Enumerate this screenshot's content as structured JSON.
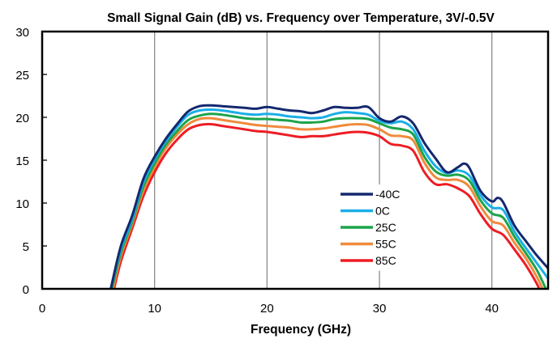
{
  "chart_data": {
    "type": "line",
    "title": "Small Signal Gain (dB) vs. Frequency over Temperature, 3V/-0.5V",
    "xlabel": "Frequency (GHz)",
    "ylabel": "",
    "xlim": [
      0,
      45
    ],
    "ylim": [
      0,
      30
    ],
    "xticks": [
      0,
      10,
      20,
      30,
      40
    ],
    "yticks": [
      0,
      5,
      10,
      15,
      20,
      25,
      30
    ],
    "grid": "vertical major gridlines",
    "legend_position": "center-right",
    "series": [
      {
        "name": "-40C",
        "color": "#14286e",
        "x": [
          6.1,
          7,
          8,
          9,
          10,
          11,
          12,
          13,
          14,
          15,
          16,
          17,
          18,
          19,
          20,
          21,
          22,
          23,
          24,
          25,
          26,
          27,
          28,
          29,
          30,
          31,
          32,
          33,
          34,
          35,
          36,
          37,
          37.5,
          38,
          39,
          40,
          40.5,
          41,
          42,
          43,
          44,
          45
        ],
        "y": [
          0,
          5,
          8.5,
          12.8,
          15.4,
          17.5,
          19.2,
          20.7,
          21.3,
          21.4,
          21.3,
          21.2,
          21.1,
          21,
          21.2,
          21,
          20.8,
          20.7,
          20.5,
          20.8,
          21.2,
          21.1,
          21.1,
          21.2,
          19.9,
          19.5,
          20.1,
          19.3,
          17,
          15.2,
          13.6,
          14.2,
          14.6,
          14.1,
          11.4,
          10.2,
          10.6,
          10.1,
          7.4,
          5.6,
          3.9,
          2.4
        ]
      },
      {
        "name": "0C",
        "color": "#1aaee8",
        "x": [
          6.1,
          7,
          8,
          9,
          10,
          11,
          12,
          13,
          14,
          15,
          16,
          17,
          18,
          19,
          20,
          21,
          22,
          23,
          24,
          25,
          26,
          27,
          28,
          29,
          30,
          31,
          32,
          33,
          34,
          35,
          36,
          37,
          38,
          39,
          40,
          41,
          42,
          43,
          44,
          45
        ],
        "y": [
          0,
          4.6,
          8.1,
          12.4,
          15.1,
          17.2,
          18.9,
          20.3,
          20.8,
          20.9,
          20.8,
          20.6,
          20.4,
          20.3,
          20.4,
          20.3,
          20.1,
          20,
          19.9,
          20,
          20.4,
          20.6,
          20.5,
          20.3,
          19.6,
          19.3,
          19.5,
          18.6,
          16.1,
          14.3,
          13.5,
          13.8,
          13.2,
          10.9,
          9.5,
          9.2,
          6.7,
          4.8,
          3.0,
          1.2
        ]
      },
      {
        "name": "25C",
        "color": "#1ca44a",
        "x": [
          6.2,
          7,
          8,
          9,
          10,
          11,
          12,
          13,
          14,
          15,
          16,
          17,
          18,
          19,
          20,
          21,
          22,
          23,
          24,
          25,
          26,
          27,
          28,
          29,
          30,
          31,
          32,
          33,
          34,
          35,
          36,
          37,
          38,
          39,
          40,
          41,
          42,
          43,
          44,
          44.8
        ],
        "y": [
          0,
          4.2,
          7.8,
          11.9,
          14.6,
          16.8,
          18.4,
          19.7,
          20.2,
          20.4,
          20.3,
          20.1,
          19.9,
          19.8,
          19.8,
          19.7,
          19.6,
          19.4,
          19.4,
          19.5,
          19.8,
          19.9,
          19.9,
          19.8,
          19.3,
          18.8,
          18.6,
          18,
          15.4,
          13.7,
          13.2,
          13.3,
          12.6,
          10.3,
          8.8,
          8.3,
          6.1,
          4.2,
          2.2,
          0
        ]
      },
      {
        "name": "55C",
        "color": "#f08a3c",
        "x": [
          6.3,
          7,
          8,
          9,
          10,
          11,
          12,
          13,
          14,
          15,
          16,
          17,
          18,
          19,
          20,
          21,
          22,
          23,
          24,
          25,
          26,
          27,
          28,
          29,
          30,
          31,
          32,
          33,
          34,
          35,
          36,
          37,
          38,
          39,
          40,
          41,
          42,
          43,
          44,
          44.5
        ],
        "y": [
          0,
          3.8,
          7.5,
          11.4,
          14.2,
          16.4,
          18,
          19.2,
          19.8,
          19.9,
          19.7,
          19.5,
          19.3,
          19.1,
          19,
          18.9,
          18.8,
          18.6,
          18.6,
          18.7,
          18.9,
          19.1,
          19.2,
          19.1,
          18.6,
          17.9,
          17.8,
          17.3,
          14.7,
          13,
          12.7,
          12.7,
          11.9,
          9.6,
          7.9,
          7.4,
          5.4,
          3.6,
          1.4,
          0
        ]
      },
      {
        "name": "85C",
        "color": "#ee1c24",
        "x": [
          6.4,
          7,
          8,
          9,
          10,
          11,
          12,
          13,
          14,
          15,
          16,
          17,
          18,
          19,
          20,
          21,
          22,
          23,
          24,
          25,
          26,
          27,
          28,
          29,
          30,
          31,
          32,
          33,
          34,
          35,
          36,
          37,
          38,
          39,
          40,
          41,
          42,
          43,
          44,
          44.2
        ],
        "y": [
          0,
          3.2,
          7,
          10.8,
          13.6,
          15.8,
          17.4,
          18.6,
          19.1,
          19.2,
          19,
          18.8,
          18.6,
          18.4,
          18.3,
          18.1,
          17.9,
          17.7,
          17.8,
          17.8,
          18,
          18.2,
          18.3,
          18.2,
          17.8,
          16.9,
          16.7,
          16.1,
          13.6,
          12.2,
          12.2,
          11.7,
          10.8,
          8.7,
          7,
          6.3,
          4.6,
          2.8,
          0.6,
          0
        ]
      }
    ]
  }
}
